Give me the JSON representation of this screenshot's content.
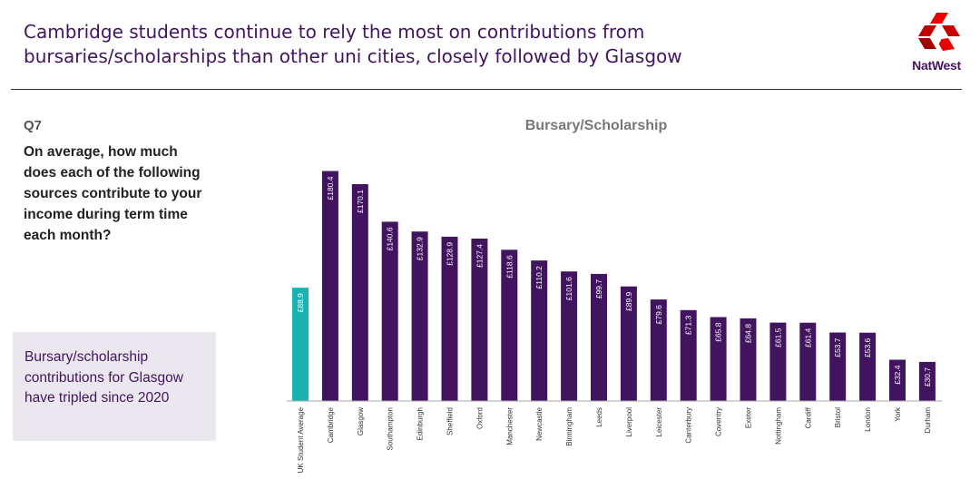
{
  "header": {
    "headline": "Cambridge students continue to rely the most on contributions from bursaries/scholarships than other uni cities, closely followed by Glasgow",
    "logo_text": "NatWest",
    "logo_colors": [
      "#e90000",
      "#c30000",
      "#a10000"
    ]
  },
  "question": {
    "number": "Q7",
    "text": "On average, how much does each of the following sources contribute to your income during term time each month?"
  },
  "callout": {
    "text": "Bursary/scholarship contributions for Glasgow have tripled since 2020"
  },
  "chart_data": {
    "type": "bar",
    "title": "Bursary/Scholarship",
    "xlabel": "",
    "ylabel": "",
    "ylim": [
      0,
      190
    ],
    "grid": false,
    "legend": "none",
    "value_prefix": "£",
    "categories": [
      "UK Student Average",
      "Cambridge",
      "Glasgow",
      "Southampton",
      "Edinburgh",
      "Sheffield",
      "Oxford",
      "Manchester",
      "Newcastle",
      "Birmingham",
      "Leeds",
      "Liverpool",
      "Leicester",
      "Canterbury",
      "Coventry",
      "Exeter",
      "Nottingham",
      "Cardiff",
      "Bristol",
      "London",
      "York",
      "Durham"
    ],
    "values": [
      88.9,
      180.4,
      170.1,
      140.6,
      132.9,
      128.9,
      127.4,
      118.6,
      110.2,
      101.6,
      99.7,
      89.9,
      79.6,
      71.3,
      65.8,
      64.8,
      61.5,
      61.4,
      53.7,
      53.6,
      32.4,
      30.7
    ],
    "labels": [
      "£88.9",
      "£180.4",
      "£170.1",
      "£140.6",
      "£132.9",
      "£128.9",
      "£127.4",
      "£118.6",
      "£110.2",
      "£101.6",
      "£99.7",
      "£89.9",
      "£79.6",
      "£71.3",
      "£65.8",
      "£64.8",
      "£61.5",
      "£61.4",
      "£53.7",
      "£53.6",
      "£32.4",
      "£30.7"
    ],
    "colors": {
      "average": "#1ab2b0",
      "city": "#42145f",
      "label_text": "#ffffff",
      "category_text": "#333333",
      "title_text": "#777777",
      "baseline": "#aaaaaa"
    }
  }
}
